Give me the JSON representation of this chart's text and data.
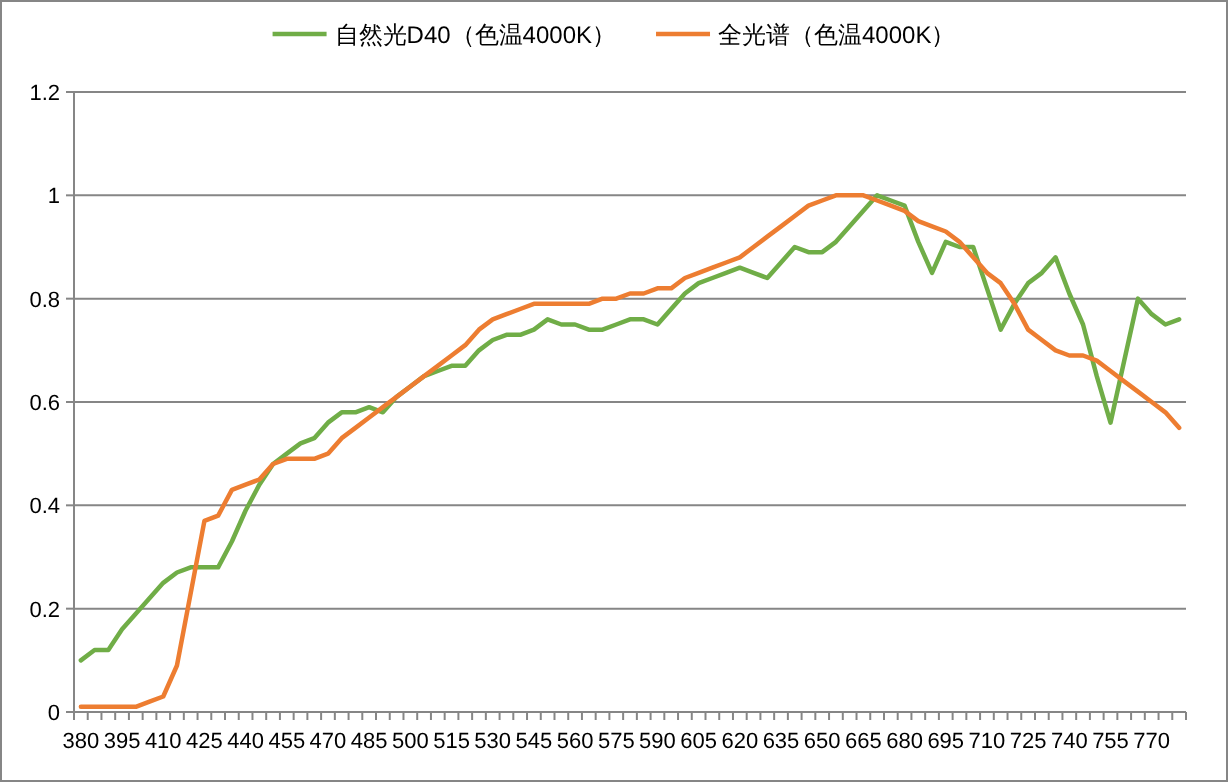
{
  "chart_data": {
    "type": "line",
    "categories": [
      "380",
      null,
      null,
      "395",
      null,
      null,
      "410",
      null,
      null,
      "425",
      null,
      null,
      "440",
      null,
      null,
      "455",
      null,
      null,
      "470",
      null,
      null,
      "485",
      null,
      null,
      "500",
      null,
      null,
      "515",
      null,
      null,
      "530",
      null,
      null,
      "545",
      null,
      null,
      "560",
      null,
      null,
      "575",
      null,
      null,
      "590",
      null,
      null,
      "605",
      null,
      null,
      "620",
      null,
      null,
      "635",
      null,
      null,
      "650",
      null,
      null,
      "665",
      null,
      null,
      "680",
      null,
      null,
      "695",
      null,
      null,
      "710",
      null,
      null,
      "725",
      null,
      null,
      "740",
      null,
      null,
      "755",
      null,
      null,
      "770",
      null,
      null
    ],
    "series": [
      {
        "name": "自然光D40（色温4000K）",
        "color": "#70ad47",
        "values": [
          0.1,
          0.12,
          0.12,
          0.16,
          0.19,
          0.22,
          0.25,
          0.27,
          0.28,
          0.28,
          0.28,
          0.33,
          0.39,
          0.44,
          0.48,
          0.5,
          0.52,
          0.53,
          0.56,
          0.58,
          0.58,
          0.59,
          0.58,
          0.61,
          0.63,
          0.65,
          0.66,
          0.67,
          0.67,
          0.7,
          0.72,
          0.73,
          0.73,
          0.74,
          0.76,
          0.75,
          0.75,
          0.74,
          0.74,
          0.75,
          0.76,
          0.76,
          0.75,
          0.78,
          0.81,
          0.83,
          0.84,
          0.85,
          0.86,
          0.85,
          0.84,
          0.87,
          0.9,
          0.89,
          0.89,
          0.91,
          0.94,
          0.97,
          1.0,
          0.99,
          0.98,
          0.91,
          0.85,
          0.91,
          0.9,
          0.9,
          0.82,
          0.74,
          0.79,
          0.83,
          0.85,
          0.88,
          0.81,
          0.75,
          0.65,
          0.56,
          0.68,
          0.8,
          0.77,
          0.75,
          0.76
        ]
      },
      {
        "name": "全光谱（色温4000K）",
        "color": "#ed7d31",
        "values": [
          0.01,
          0.01,
          0.01,
          0.01,
          0.01,
          0.02,
          0.03,
          0.09,
          0.23,
          0.37,
          0.38,
          0.43,
          0.44,
          0.45,
          0.48,
          0.49,
          0.49,
          0.49,
          0.5,
          0.53,
          0.55,
          0.57,
          0.59,
          0.61,
          0.63,
          0.65,
          0.67,
          0.69,
          0.71,
          0.74,
          0.76,
          0.77,
          0.78,
          0.79,
          0.79,
          0.79,
          0.79,
          0.79,
          0.8,
          0.8,
          0.81,
          0.81,
          0.82,
          0.82,
          0.84,
          0.85,
          0.86,
          0.87,
          0.88,
          0.9,
          0.92,
          0.94,
          0.96,
          0.98,
          0.99,
          1.0,
          1.0,
          1.0,
          0.99,
          0.98,
          0.97,
          0.95,
          0.94,
          0.93,
          0.91,
          0.88,
          0.85,
          0.83,
          0.79,
          0.74,
          0.72,
          0.7,
          0.69,
          0.69,
          0.68,
          0.66,
          0.64,
          0.62,
          0.6,
          0.58,
          0.55
        ]
      }
    ],
    "ylim": [
      0,
      1.2
    ],
    "yticks": [
      0,
      0.2,
      0.4,
      0.6,
      0.8,
      1,
      1.2
    ],
    "grid": "y",
    "legend": "top",
    "marker": "none",
    "line_style": "solid"
  }
}
